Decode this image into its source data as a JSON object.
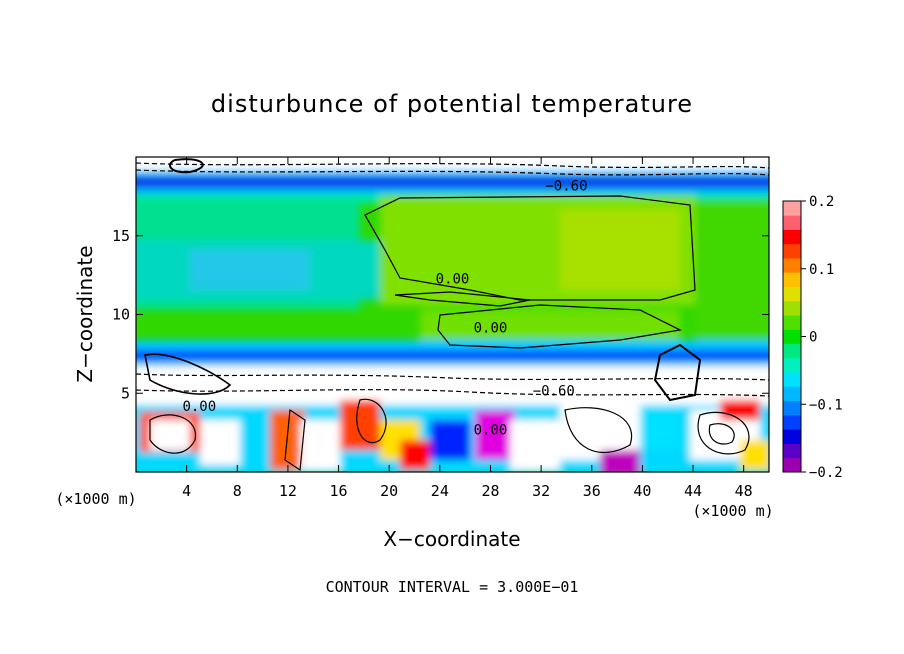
{
  "chart_data": {
    "type": "heatmap",
    "title": "disturbunce of potential temperature",
    "xlabel": "X−coordinate",
    "ylabel": "Z−coordinate",
    "x_unit_label": "(×1000 m)",
    "z_unit_label": "(×1000 m)",
    "xlim": [
      0,
      50
    ],
    "ylim": [
      0,
      20
    ],
    "x_ticks": [
      4,
      8,
      12,
      16,
      20,
      24,
      28,
      32,
      36,
      40,
      44,
      48
    ],
    "y_ticks": [
      5,
      10,
      15
    ],
    "colorbar": {
      "range": [
        -0.2,
        0.2
      ],
      "tick_values": [
        0.2,
        0.1,
        0,
        -0.1,
        -0.2
      ],
      "tick_labels": [
        "0.2",
        "0.1",
        "0",
        "−0.1",
        "−0.2"
      ],
      "colors": [
        "#9a00b0",
        "#5a00c8",
        "#0000e0",
        "#0040ff",
        "#0080ff",
        "#00b8ff",
        "#00e0ff",
        "#00f0c0",
        "#00e880",
        "#00e000",
        "#50e000",
        "#a0e000",
        "#e0e000",
        "#ffc000",
        "#ff8000",
        "#ff4000",
        "#ff0000",
        "#ff6070",
        "#ffa0a0"
      ]
    },
    "contour_labels": [
      {
        "text": "0.00",
        "x": 25,
        "z": 12.1
      },
      {
        "text": "0.00",
        "x": 28,
        "z": 9.0
      },
      {
        "text": "−0.60",
        "x": 33,
        "z": 5.0
      },
      {
        "text": "0.00",
        "x": 5,
        "z": 4.0
      },
      {
        "text": "0.00",
        "x": 28,
        "z": 2.5
      },
      {
        "text": "−0.60",
        "x": 34,
        "z": 18.0
      }
    ],
    "contour_interval_label": "CONTOUR INTERVAL = 3.000E−01"
  }
}
